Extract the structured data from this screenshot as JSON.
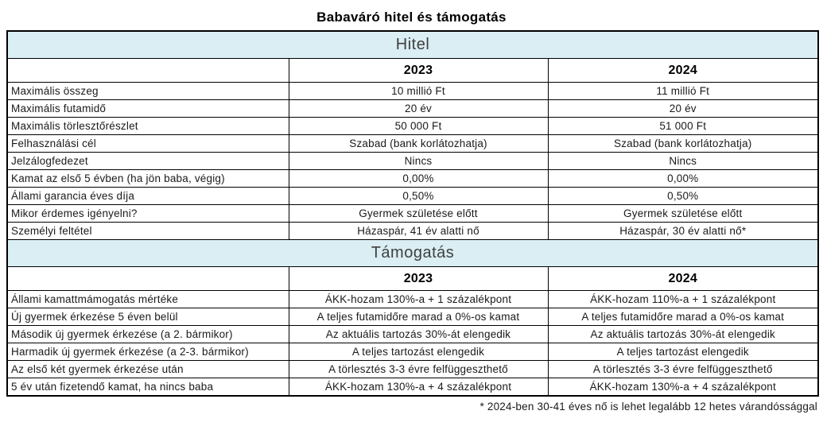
{
  "title": "Babaváró hitel és támogatás",
  "footnote": "* 2024-ben 30-41 éves nő is lehet legalább 12 hetes várandóssággal",
  "colors": {
    "section_band_bg": "#daeef3",
    "section_band_text": "#404040",
    "border": "#000000"
  },
  "sections": [
    {
      "title": "Hitel",
      "col_headers": {
        "y2023": "2023",
        "y2024": "2024"
      },
      "rows": [
        {
          "label": "Maximális összeg",
          "y2023": "10 millió Ft",
          "y2024": "11 millió Ft"
        },
        {
          "label": "Maximális futamidő",
          "y2023": "20 év",
          "y2024": "20 év"
        },
        {
          "label": "Maximális törlesztőrészlet",
          "y2023": "50 000 Ft",
          "y2024": "51 000 Ft"
        },
        {
          "label": "Felhasználási cél",
          "y2023": "Szabad (bank korlátozhatja)",
          "y2024": "Szabad (bank korlátozhatja)"
        },
        {
          "label": "Jelzálogfedezet",
          "y2023": "Nincs",
          "y2024": "Nincs"
        },
        {
          "label": "Kamat az első 5 évben (ha jön baba, végig)",
          "y2023": "0,00%",
          "y2024": "0,00%"
        },
        {
          "label": "Állami garancia éves díja",
          "y2023": "0,50%",
          "y2024": "0,50%"
        },
        {
          "label": "Mikor érdemes igényelni?",
          "y2023": "Gyermek születése előtt",
          "y2024": "Gyermek születése előtt"
        },
        {
          "label": "Személyi feltétel",
          "y2023": "Házaspár, 41 év alatti nő",
          "y2024": "Házaspár, 30 év alatti nő*"
        }
      ]
    },
    {
      "title": "Támogatás",
      "col_headers": {
        "y2023": "2023",
        "y2024": "2024"
      },
      "rows": [
        {
          "label": "Állami kamattmámogatás mértéke",
          "y2023": "ÁKK-hozam 130%-a + 1 százalékpont",
          "y2024": "ÁKK-hozam 110%-a + 1 százalékpont"
        },
        {
          "label": "Új gyermek érkezése 5 éven belül",
          "y2023": "A teljes futamidőre marad a 0%-os kamat",
          "y2024": "A teljes futamidőre marad a 0%-os kamat"
        },
        {
          "label": "Második új gyermek érkezése (a 2. bármikor)",
          "y2023": "Az aktuális tartozás 30%-át elengedik",
          "y2024": "Az aktuális tartozás 30%-át elengedik"
        },
        {
          "label": "Harmadik új gyermek érkezése (a 2-3. bármikor)",
          "y2023": "A teljes tartozást elengedik",
          "y2024": "A teljes tartozást elengedik"
        },
        {
          "label": "Az első két gyermek érkezése után",
          "y2023": "A törlesztés 3-3 évre felfüggeszthető",
          "y2024": "A törlesztés 3-3 évre felfüggeszthető"
        },
        {
          "label": "5 év után fizetendő kamat, ha nincs baba",
          "y2023": "ÁKK-hozam 130%-a + 4 százalékpont",
          "y2024": "ÁKK-hozam 130%-a + 4 százalékpont"
        }
      ]
    }
  ]
}
